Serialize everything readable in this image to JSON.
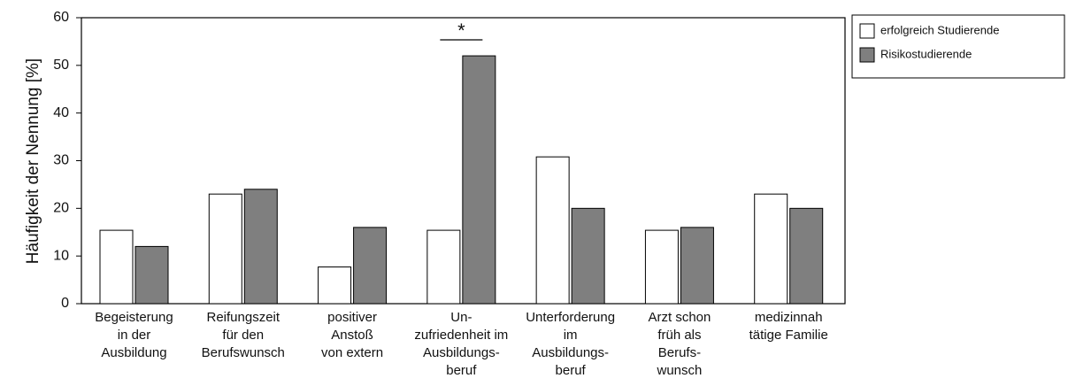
{
  "chart_data": {
    "type": "bar",
    "ylabel": "Häufigkeit der Nennung [%]",
    "categories": [
      [
        "Begeisterung",
        "in der",
        "Ausbildung"
      ],
      [
        "Reifungszeit",
        "für den",
        "Berufswunsch"
      ],
      [
        "positiver",
        "Anstoß",
        "von extern"
      ],
      [
        "Un-",
        "zufriedenheit im",
        "Ausbildungs-",
        "beruf"
      ],
      [
        "Unterforderung",
        "im",
        "Ausbildungs-",
        "beruf"
      ],
      [
        "Arzt schon",
        "früh als",
        "Berufs-",
        "wunsch"
      ],
      [
        "medizinnah",
        "tätige Familie"
      ]
    ],
    "series": [
      {
        "name": "erfolgreich Studierende",
        "color": "#ffffff",
        "values": [
          15.4,
          23,
          7.7,
          15.4,
          30.8,
          15.4,
          23
        ]
      },
      {
        "name": "Risikostudierende",
        "color": "#7f7f7f",
        "values": [
          12,
          24,
          16,
          52,
          20,
          16,
          20
        ]
      }
    ],
    "significance": {
      "category": 3,
      "label": "*"
    },
    "ylim": [
      0,
      60
    ],
    "yticks": [
      0,
      10,
      20,
      30,
      40,
      50,
      60
    ],
    "legend": "right"
  }
}
